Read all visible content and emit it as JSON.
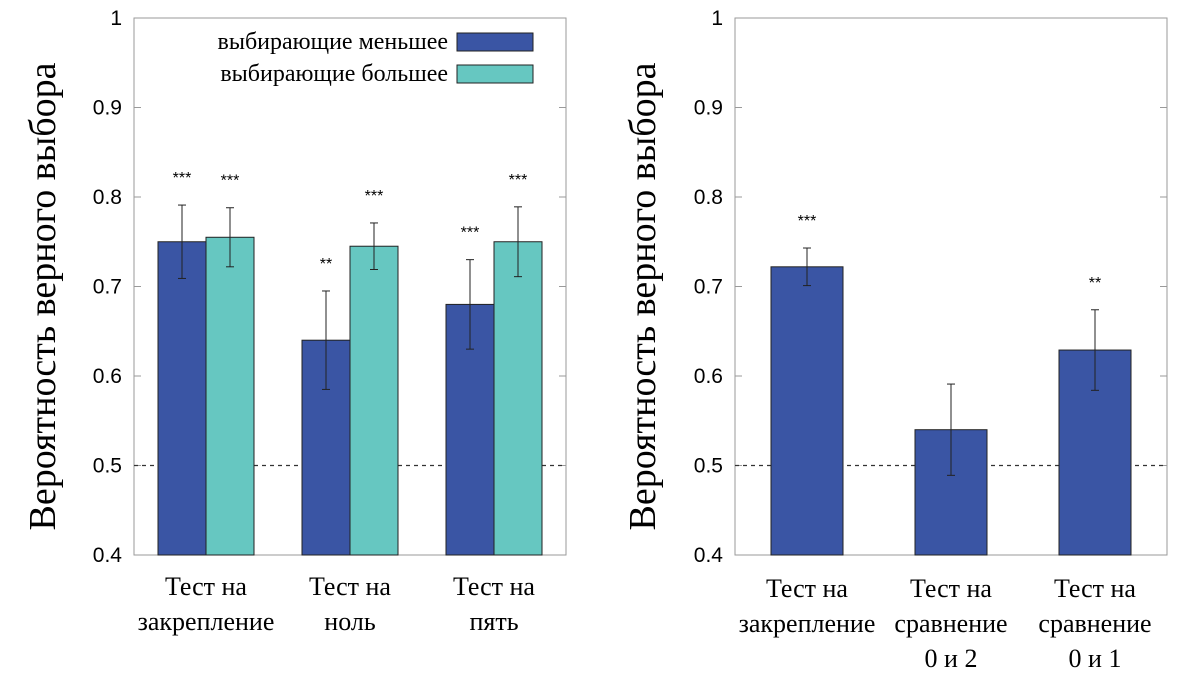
{
  "chart_data": [
    {
      "type": "bar",
      "ylabel": "Вероятность верного выбора",
      "ylim": [
        0.4,
        1
      ],
      "yticks": [
        "0.4",
        "0.5",
        "0.6",
        "0.7",
        "0.8",
        "0.9",
        "1"
      ],
      "reference_line": 0.5,
      "legend_position": "top-right",
      "categories": [
        [
          "Тест на",
          "закрепление"
        ],
        [
          "Тест на",
          "ноль"
        ],
        [
          "Тест на",
          "пять"
        ]
      ],
      "series": [
        {
          "name": "выбирающие меньшее",
          "color": "#3a55a4",
          "values": [
            0.75,
            0.64,
            0.68
          ],
          "errors": [
            0.041,
            0.055,
            0.05
          ],
          "significance": [
            "***",
            "**",
            "***"
          ]
        },
        {
          "name": "выбирающие большее",
          "color": "#66c7c1",
          "values": [
            0.755,
            0.745,
            0.75
          ],
          "errors": [
            0.033,
            0.026,
            0.039
          ],
          "significance": [
            "***",
            "***",
            "***"
          ]
        }
      ]
    },
    {
      "type": "bar",
      "ylabel": "Вероятность верного выбора",
      "ylim": [
        0.4,
        1
      ],
      "yticks": [
        "0.4",
        "0.5",
        "0.6",
        "0.7",
        "0.8",
        "0.9",
        "1"
      ],
      "reference_line": 0.5,
      "categories": [
        [
          "Тест на",
          "закрепление"
        ],
        [
          "Тест на",
          "сравнение",
          "0 и 2"
        ],
        [
          "Тест на",
          "сравнение",
          "0 и 1"
        ]
      ],
      "series": [
        {
          "name": "",
          "color": "#3a55a4",
          "values": [
            0.722,
            0.54,
            0.629
          ],
          "errors": [
            0.021,
            0.051,
            0.045
          ],
          "significance": [
            "***",
            "",
            "**"
          ]
        }
      ]
    }
  ]
}
